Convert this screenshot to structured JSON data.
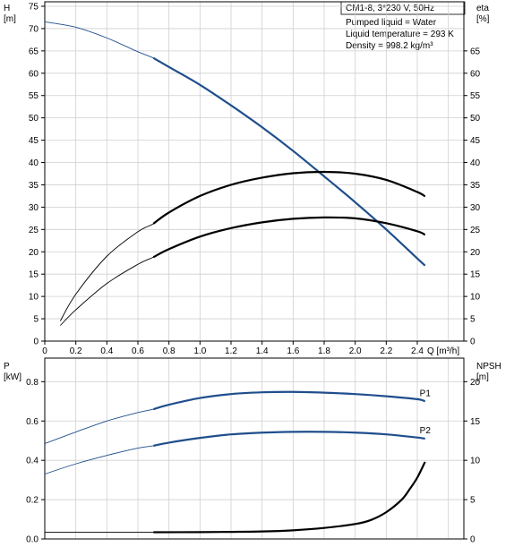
{
  "chart_data": [
    {
      "type": "line",
      "title": "",
      "info_box": {
        "product": "CM1-8, 3*230 V, 50Hz",
        "liquid": "Pumped liquid = Water",
        "temperature": "Liquid temperature = 293 K",
        "density": "Density = 998.2 kg/m³"
      },
      "xlabel": "Q [m³/h]",
      "xlabel_unit": "Q [m³/h]",
      "xlim": [
        0,
        2.7
      ],
      "x_ticks": [
        "0",
        "0.2",
        "0.4",
        "0.6",
        "0.8",
        "1.0",
        "1.2",
        "1.4",
        "1.6",
        "1.8",
        "2.0",
        "2.2",
        "2.4"
      ],
      "left_axis": {
        "label": "H",
        "unit": "[m]",
        "ylim": [
          0,
          76
        ],
        "ticks": [
          "0",
          "5",
          "10",
          "15",
          "20",
          "25",
          "30",
          "35",
          "40",
          "45",
          "50",
          "55",
          "60",
          "65",
          "70",
          "75"
        ]
      },
      "right_axis": {
        "label": "eta",
        "unit": "[%]",
        "ylim": [
          0,
          76
        ],
        "ticks": [
          "0",
          "5",
          "10",
          "15",
          "20",
          "25",
          "30",
          "35",
          "40",
          "45",
          "50",
          "55",
          "60",
          "65"
        ]
      },
      "series": [
        {
          "color": "#1f4e8c",
          "axis": "left",
          "x": [
            0,
            0.2,
            0.4,
            0.6,
            0.7,
            0.8,
            1.0,
            1.2,
            1.4,
            1.6,
            1.8,
            2.0,
            2.2,
            2.4,
            2.45
          ],
          "y": [
            71.5,
            70.3,
            67.9,
            64.8,
            63.4,
            61.4,
            57.4,
            52.8,
            47.9,
            42.6,
            36.9,
            31.1,
            25.0,
            18.5,
            16.9
          ],
          "operating_range": [
            0.7,
            2.45
          ]
        },
        {
          "color": "#000000",
          "axis": "right",
          "x": [
            0.1,
            0.2,
            0.4,
            0.6,
            0.7,
            0.8,
            1.0,
            1.2,
            1.4,
            1.6,
            1.8,
            2.0,
            2.2,
            2.4,
            2.45
          ],
          "y": [
            4.5,
            10.5,
            19.0,
            24.5,
            26.3,
            28.8,
            32.5,
            35.0,
            36.6,
            37.6,
            37.9,
            37.5,
            36.1,
            33.4,
            32.4
          ],
          "operating_range": [
            0.7,
            2.45
          ]
        },
        {
          "color": "#000000",
          "axis": "right",
          "x": [
            0.1,
            0.2,
            0.4,
            0.6,
            0.7,
            0.8,
            1.0,
            1.2,
            1.4,
            1.6,
            1.8,
            2.0,
            2.2,
            2.4,
            2.45
          ],
          "y": [
            3.5,
            7.0,
            12.9,
            17.2,
            18.8,
            20.6,
            23.4,
            25.3,
            26.6,
            27.4,
            27.7,
            27.5,
            26.4,
            24.6,
            23.8
          ],
          "operating_range": [
            0.7,
            2.45
          ]
        }
      ],
      "grid": true
    },
    {
      "type": "line",
      "title": "",
      "xlim": [
        0,
        2.7
      ],
      "left_axis": {
        "label": "P",
        "unit": "[kW]",
        "ylim": [
          0,
          0.92
        ],
        "ticks": [
          "0.0",
          "0.2",
          "0.4",
          "0.6",
          "0.8"
        ]
      },
      "right_axis": {
        "label": "NPSH",
        "unit": "[m]",
        "ylim": [
          0,
          23
        ],
        "ticks": [
          "0",
          "5",
          "10",
          "15",
          "20"
        ]
      },
      "series": [
        {
          "name": "P1",
          "color": "#1f4e8c",
          "axis": "left",
          "x": [
            0,
            0.2,
            0.4,
            0.6,
            0.7,
            0.8,
            1.0,
            1.2,
            1.4,
            1.6,
            1.8,
            2.0,
            2.2,
            2.4,
            2.45
          ],
          "y": [
            0.485,
            0.544,
            0.6,
            0.643,
            0.66,
            0.683,
            0.717,
            0.737,
            0.746,
            0.748,
            0.744,
            0.737,
            0.726,
            0.711,
            0.7
          ],
          "operating_range": [
            0.7,
            2.45
          ]
        },
        {
          "name": "P2",
          "color": "#1f4e8c",
          "axis": "left",
          "x": [
            0,
            0.2,
            0.4,
            0.6,
            0.7,
            0.8,
            1.0,
            1.2,
            1.4,
            1.6,
            1.8,
            2.0,
            2.2,
            2.4,
            2.45
          ],
          "y": [
            0.33,
            0.382,
            0.425,
            0.462,
            0.474,
            0.49,
            0.514,
            0.532,
            0.541,
            0.545,
            0.545,
            0.541,
            0.532,
            0.516,
            0.51
          ],
          "operating_range": [
            0.7,
            2.45
          ]
        },
        {
          "color": "#000000",
          "axis": "right",
          "x": [
            0,
            0.7,
            1.0,
            1.2,
            1.4,
            1.6,
            1.8,
            2.0,
            2.1,
            2.2,
            2.3,
            2.35,
            2.4,
            2.45
          ],
          "y": [
            0.85,
            0.85,
            0.87,
            0.9,
            0.95,
            1.1,
            1.4,
            1.9,
            2.4,
            3.4,
            5.0,
            6.3,
            7.8,
            9.8
          ],
          "operating_range": [
            0.7,
            2.45
          ]
        }
      ],
      "series_labels": [
        "P1",
        "P2"
      ],
      "grid": true
    }
  ]
}
